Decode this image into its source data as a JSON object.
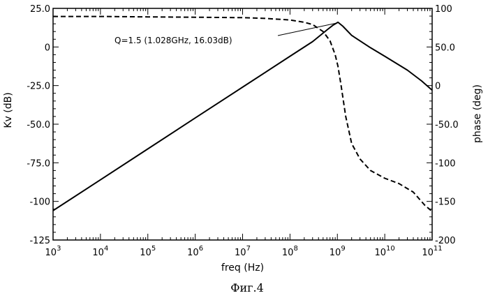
{
  "chart_data": {
    "type": "line",
    "x_scale": "log",
    "xlabel": "freq (Hz)",
    "ylabel_left": "Kv (dB)",
    "ylabel_right": "phase (deg)",
    "xlim": [
      1000,
      100000000000
    ],
    "ylim_left": [
      -125,
      25
    ],
    "ylim_right": [
      -200,
      100
    ],
    "x_ticks": [
      {
        "value": 1000,
        "base": "10",
        "exp": "3"
      },
      {
        "value": 10000,
        "base": "10",
        "exp": "4"
      },
      {
        "value": 100000,
        "base": "10",
        "exp": "5"
      },
      {
        "value": 1000000,
        "base": "10",
        "exp": "6"
      },
      {
        "value": 10000000,
        "base": "10",
        "exp": "7"
      },
      {
        "value": 100000000,
        "base": "10",
        "exp": "8"
      },
      {
        "value": 1000000000,
        "base": "10",
        "exp": "9"
      },
      {
        "value": 10000000000,
        "base": "10",
        "exp": "10"
      },
      {
        "value": 100000000000,
        "base": "10",
        "exp": "11"
      }
    ],
    "y_ticks_left": [
      {
        "value": 25,
        "label": "25.0"
      },
      {
        "value": 0,
        "label": "0"
      },
      {
        "value": -25,
        "label": "-25.0"
      },
      {
        "value": -50,
        "label": "-50.0"
      },
      {
        "value": -75,
        "label": "-75.0"
      },
      {
        "value": -100,
        "label": "-100"
      },
      {
        "value": -125,
        "label": "-125"
      }
    ],
    "y_ticks_right": [
      {
        "value": 100,
        "label": "100"
      },
      {
        "value": 50,
        "label": "50.0"
      },
      {
        "value": 0,
        "label": "0"
      },
      {
        "value": -50,
        "label": "-50.0"
      },
      {
        "value": -100,
        "label": "-100"
      },
      {
        "value": -150,
        "label": "-150"
      },
      {
        "value": -200,
        "label": "-200"
      }
    ],
    "series": [
      {
        "axis": "left",
        "style": "solid",
        "color": "#000000",
        "x": [
          1000,
          10000,
          100000,
          1000000,
          10000000,
          100000000,
          300000000,
          600000000,
          800000000,
          1028000000,
          1300000000,
          2000000000,
          5000000000,
          10000000000,
          30000000000,
          60000000000,
          100000000000
        ],
        "y": [
          -106,
          -86,
          -66,
          -46,
          -26,
          -6,
          3.5,
          11,
          14,
          16.03,
          13.5,
          7.5,
          -0.5,
          -6,
          -15,
          -22,
          -28
        ]
      },
      {
        "axis": "right",
        "style": "dashed",
        "color": "#000000",
        "x": [
          1000,
          10000,
          100000,
          1000000,
          10000000,
          30000000,
          100000000,
          200000000,
          300000000,
          500000000,
          700000000,
          900000000,
          1028000000,
          1200000000,
          1500000000,
          2000000000,
          3000000000,
          5000000000,
          10000000000,
          20000000000,
          40000000000,
          70000000000,
          100000000000
        ],
        "y": [
          89.5,
          89.5,
          89,
          88.5,
          88,
          87,
          85,
          82,
          79,
          70,
          58,
          40,
          25,
          0,
          -40,
          -75,
          -95,
          -110,
          -120,
          -127,
          -138,
          -155,
          -163
        ]
      }
    ],
    "annotations": [
      {
        "text": "Q=1.5 (1.028GHz, 16.03dB)",
        "x": 1028000000,
        "y": 16.03
      }
    ],
    "grid": false
  },
  "caption": "Фиг.4"
}
